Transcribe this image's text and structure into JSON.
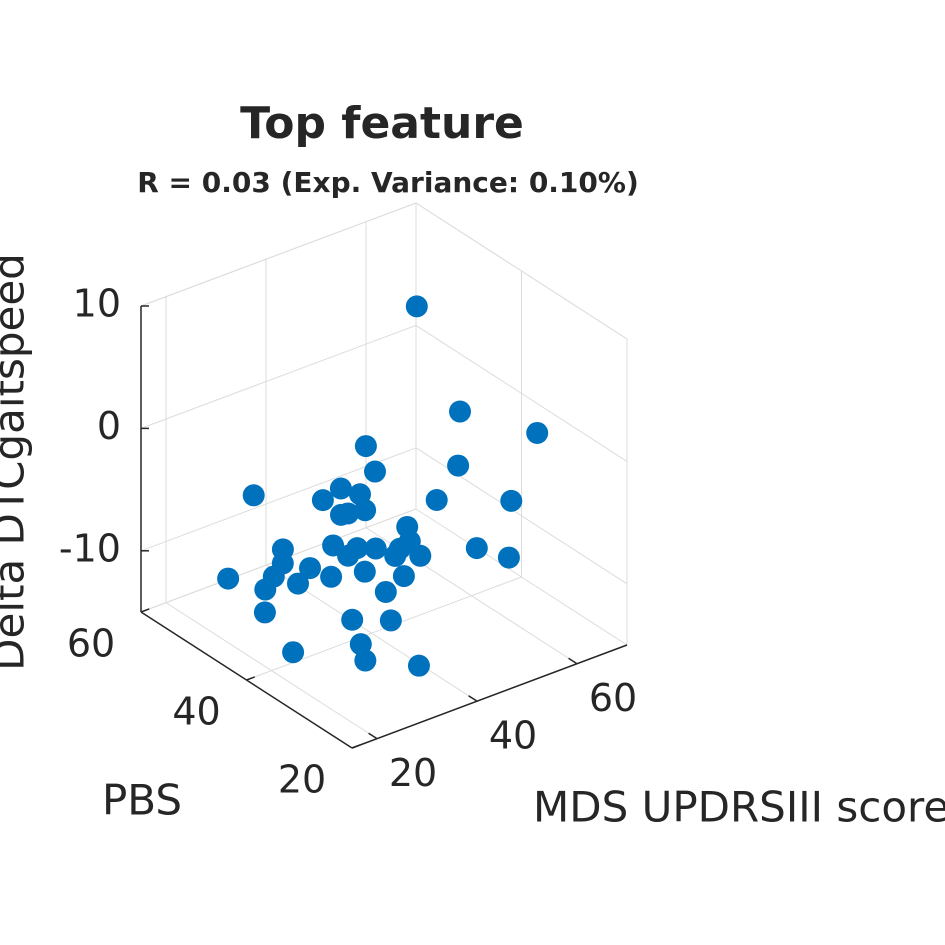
{
  "chart_data": {
    "type": "scatter3d",
    "title": "Top feature",
    "subtitle": "R = 0.03 (Exp. Variance: 0.10%)",
    "xlabel": "MDS UPDRSIII score",
    "ylabel": "PBS",
    "zlabel": "Delta DTCgaitspeed",
    "color": "#0072bd",
    "grid": true,
    "xlim": [
      15,
      70
    ],
    "xticks": [
      20,
      40,
      60
    ],
    "ylim": [
      20,
      60
    ],
    "yticks": [
      20,
      40,
      60
    ],
    "zlim": [
      -15,
      10
    ],
    "zticks": [
      -10,
      0,
      10
    ],
    "x": [
      57.5,
      57.7,
      64.7,
      43.1,
      53.1,
      40.7,
      29.1,
      38.1,
      37.7,
      34.5,
      44.6,
      55.3,
      34.5,
      35.3,
      38.7,
      35.0,
      28.1,
      26.5,
      28.7,
      32.4,
      48.4,
      50.6,
      37.1,
      36.3,
      31.1,
      27.7,
      30.7,
      26.0,
      27.7,
      29.6,
      28.9,
      26.1,
      25.3,
      27.2,
      30.2,
      22.9,
      27.7,
      29.1,
      25.2,
      20.1,
      24.0,
      30.5,
      33.9,
      33.0
    ],
    "y": [
      48,
      40,
      32,
      44,
      36,
      40,
      52,
      44,
      40,
      44,
      32,
      28,
      36,
      40,
      32,
      28,
      36,
      44,
      32,
      32,
      28,
      24,
      28,
      32,
      36,
      40,
      48,
      28,
      36,
      24,
      48,
      54,
      40,
      48,
      28,
      44,
      32,
      26,
      28,
      36,
      26,
      22,
      40,
      28
    ],
    "z": [
      6.8,
      0.4,
      -0.2,
      -1.3,
      -2.2,
      -1.9,
      -5.4,
      -4.0,
      -3.3,
      -4.4,
      -2.6,
      -3.2,
      -3.0,
      -4.5,
      -3.9,
      -3.4,
      -4.9,
      -7.2,
      -4.1,
      -4.7,
      -6.0,
      -6.0,
      -4.9,
      -5.9,
      -6.2,
      -7.8,
      -10.1,
      -4.5,
      -7.4,
      -4.3,
      -10.9,
      -12.3,
      -8.7,
      -11.7,
      -6.8,
      -11.8,
      -9.8,
      -8.4,
      -10.3,
      -12.4,
      -10.9,
      -11.2,
      -4.4,
      -3.7
    ]
  }
}
